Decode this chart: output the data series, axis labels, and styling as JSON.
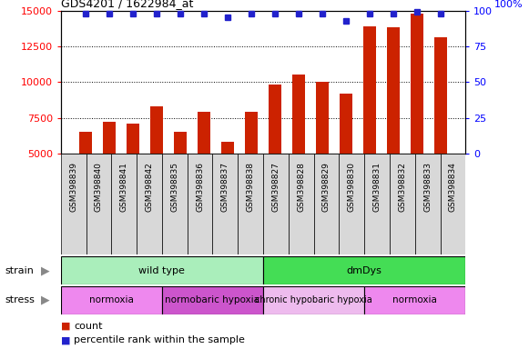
{
  "title": "GDS4201 / 1622984_at",
  "samples": [
    "GSM398839",
    "GSM398840",
    "GSM398841",
    "GSM398842",
    "GSM398835",
    "GSM398836",
    "GSM398837",
    "GSM398838",
    "GSM398827",
    "GSM398828",
    "GSM398829",
    "GSM398830",
    "GSM398831",
    "GSM398832",
    "GSM398833",
    "GSM398834"
  ],
  "counts": [
    6500,
    7200,
    7100,
    8300,
    6500,
    7900,
    5800,
    7900,
    9800,
    10500,
    10000,
    9200,
    13900,
    13800,
    14800,
    13100
  ],
  "percentile_ranks": [
    98,
    98,
    98,
    98,
    98,
    98,
    95,
    98,
    98,
    98,
    98,
    93,
    98,
    98,
    99,
    98
  ],
  "bar_color": "#cc2200",
  "dot_color": "#2222cc",
  "ylim_left": [
    5000,
    15000
  ],
  "yticks_left": [
    5000,
    7500,
    10000,
    12500,
    15000
  ],
  "ylim_right": [
    0,
    100
  ],
  "yticks_right": [
    0,
    25,
    50,
    75,
    100
  ],
  "strain_groups": [
    {
      "label": "wild type",
      "start": 0,
      "end": 8,
      "color": "#aaeebb"
    },
    {
      "label": "dmDys",
      "start": 8,
      "end": 16,
      "color": "#44dd55"
    }
  ],
  "stress_groups": [
    {
      "label": "normoxia",
      "start": 0,
      "end": 4,
      "color": "#ee88ee"
    },
    {
      "label": "normobaric hypoxia",
      "start": 4,
      "end": 8,
      "color": "#cc55cc"
    },
    {
      "label": "chronic hypobaric hypoxia",
      "start": 8,
      "end": 12,
      "color": "#eebbee"
    },
    {
      "label": "normoxia",
      "start": 12,
      "end": 16,
      "color": "#ee88ee"
    }
  ],
  "legend_count_label": "count",
  "legend_pct_label": "percentile rank within the sample",
  "strain_label": "strain",
  "stress_label": "stress",
  "xtick_bg": "#d8d8d8",
  "background_color": "#ffffff"
}
